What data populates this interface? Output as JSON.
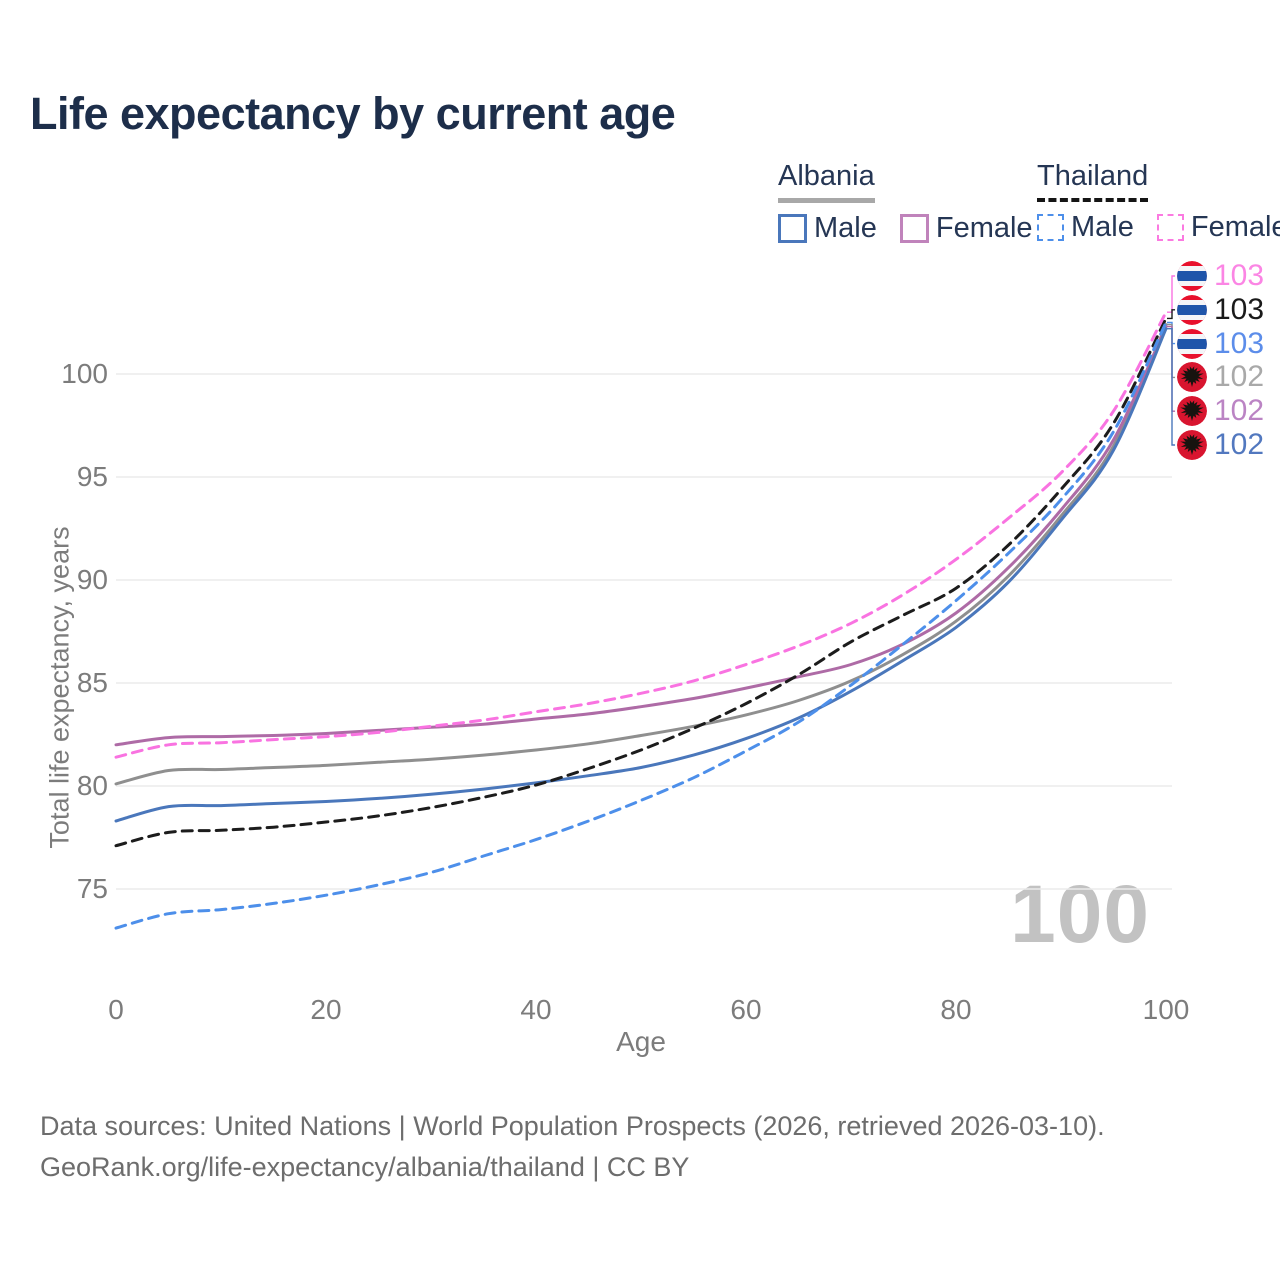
{
  "title": "Life expectancy by current age",
  "legend": {
    "groups": [
      {
        "name": "Albania",
        "line_style": "solid",
        "underline_color": "#a8a8a8",
        "items": [
          {
            "label": "Male",
            "color": "#4a77bb",
            "dashed": false
          },
          {
            "label": "Female",
            "color": "#c083bb",
            "dashed": false
          }
        ]
      },
      {
        "name": "Thailand",
        "line_style": "dashed",
        "underline_color": "#151515",
        "items": [
          {
            "label": "Male",
            "color": "#4d8fea",
            "dashed": true
          },
          {
            "label": "Female",
            "color": "#fb7ae1",
            "dashed": true
          }
        ]
      }
    ]
  },
  "chart_data": {
    "type": "line",
    "title": "Life expectancy by current age",
    "xlabel": "Age",
    "ylabel": "Total life expectancy, years",
    "xlim": [
      0,
      100
    ],
    "ylim": [
      72.5,
      103.5
    ],
    "xticks": [
      0,
      20,
      40,
      60,
      80,
      100
    ],
    "yticks": [
      75,
      80,
      85,
      90,
      95,
      100
    ],
    "grid": "horizontal",
    "x": [
      0,
      5,
      10,
      15,
      20,
      25,
      30,
      35,
      40,
      45,
      50,
      55,
      60,
      65,
      70,
      75,
      80,
      85,
      90,
      95,
      100
    ],
    "series": [
      {
        "name": "Albania Total",
        "country": "Albania",
        "group": "Total",
        "color": "#8f8f8f",
        "dashed": false,
        "values": [
          80.1,
          80.75,
          80.8,
          80.9,
          81.0,
          81.15,
          81.3,
          81.5,
          81.75,
          82.05,
          82.45,
          82.9,
          83.45,
          84.15,
          85.1,
          86.4,
          88.0,
          90.2,
          93.1,
          96.5,
          102.4
        ]
      },
      {
        "name": "Albania Female",
        "country": "Albania",
        "group": "Female",
        "color": "#ae6ba6",
        "dashed": false,
        "values": [
          82.0,
          82.35,
          82.4,
          82.45,
          82.55,
          82.7,
          82.85,
          83.0,
          83.25,
          83.5,
          83.85,
          84.25,
          84.75,
          85.3,
          85.9,
          86.9,
          88.4,
          90.6,
          93.4,
          96.8,
          102.3
        ]
      },
      {
        "name": "Albania Male",
        "country": "Albania",
        "group": "Male",
        "color": "#4a77bb",
        "dashed": false,
        "values": [
          78.3,
          79.0,
          79.05,
          79.15,
          79.25,
          79.4,
          79.6,
          79.85,
          80.15,
          80.5,
          80.9,
          81.5,
          82.3,
          83.3,
          84.6,
          86.1,
          87.7,
          89.9,
          92.9,
          96.3,
          102.2
        ]
      },
      {
        "name": "Thailand Total",
        "country": "Thailand",
        "group": "Total",
        "color": "#1c1c1c",
        "dashed": true,
        "values": [
          77.1,
          77.75,
          77.85,
          78.0,
          78.25,
          78.55,
          78.95,
          79.45,
          80.05,
          80.85,
          81.75,
          82.8,
          84.0,
          85.4,
          87.0,
          88.3,
          89.6,
          91.7,
          94.4,
          97.6,
          102.7
        ]
      },
      {
        "name": "Thailand Male",
        "country": "Thailand",
        "group": "Male",
        "color": "#4d8fea",
        "dashed": true,
        "values": [
          73.1,
          73.8,
          74.0,
          74.3,
          74.7,
          75.2,
          75.8,
          76.6,
          77.4,
          78.3,
          79.3,
          80.4,
          81.7,
          83.1,
          84.9,
          86.9,
          89.0,
          91.3,
          93.9,
          97.2,
          102.5
        ]
      },
      {
        "name": "Thailand Female",
        "country": "Thailand",
        "group": "Female",
        "color": "#f973e1",
        "dashed": true,
        "values": [
          81.4,
          82.0,
          82.1,
          82.25,
          82.4,
          82.6,
          82.9,
          83.2,
          83.6,
          84.0,
          84.5,
          85.1,
          85.9,
          86.8,
          87.9,
          89.3,
          91.0,
          93.0,
          95.2,
          98.2,
          103.0
        ]
      }
    ],
    "end_labels": [
      {
        "text": "103",
        "flag": "thailand",
        "color": "#fb85e4",
        "series": "Thailand Female"
      },
      {
        "text": "103",
        "flag": "thailand",
        "color": "#1a1a1a",
        "series": "Thailand Total"
      },
      {
        "text": "103",
        "flag": "thailand",
        "color": "#5c8dea",
        "series": "Thailand Male"
      },
      {
        "text": "102",
        "flag": "albania",
        "color": "#a9a9a9",
        "series": "Albania Total"
      },
      {
        "text": "102",
        "flag": "albania",
        "color": "#bb84c4",
        "series": "Albania Female"
      },
      {
        "text": "102",
        "flag": "albania",
        "color": "#5278bf",
        "series": "Albania Male"
      }
    ]
  },
  "watermark": "100",
  "footer": {
    "line1": "Data sources: United Nations | World Population Prospects (2026, retrieved 2026-03-10).",
    "line2": "GeoRank.org/life-expectancy/albania/thailand | CC BY"
  }
}
